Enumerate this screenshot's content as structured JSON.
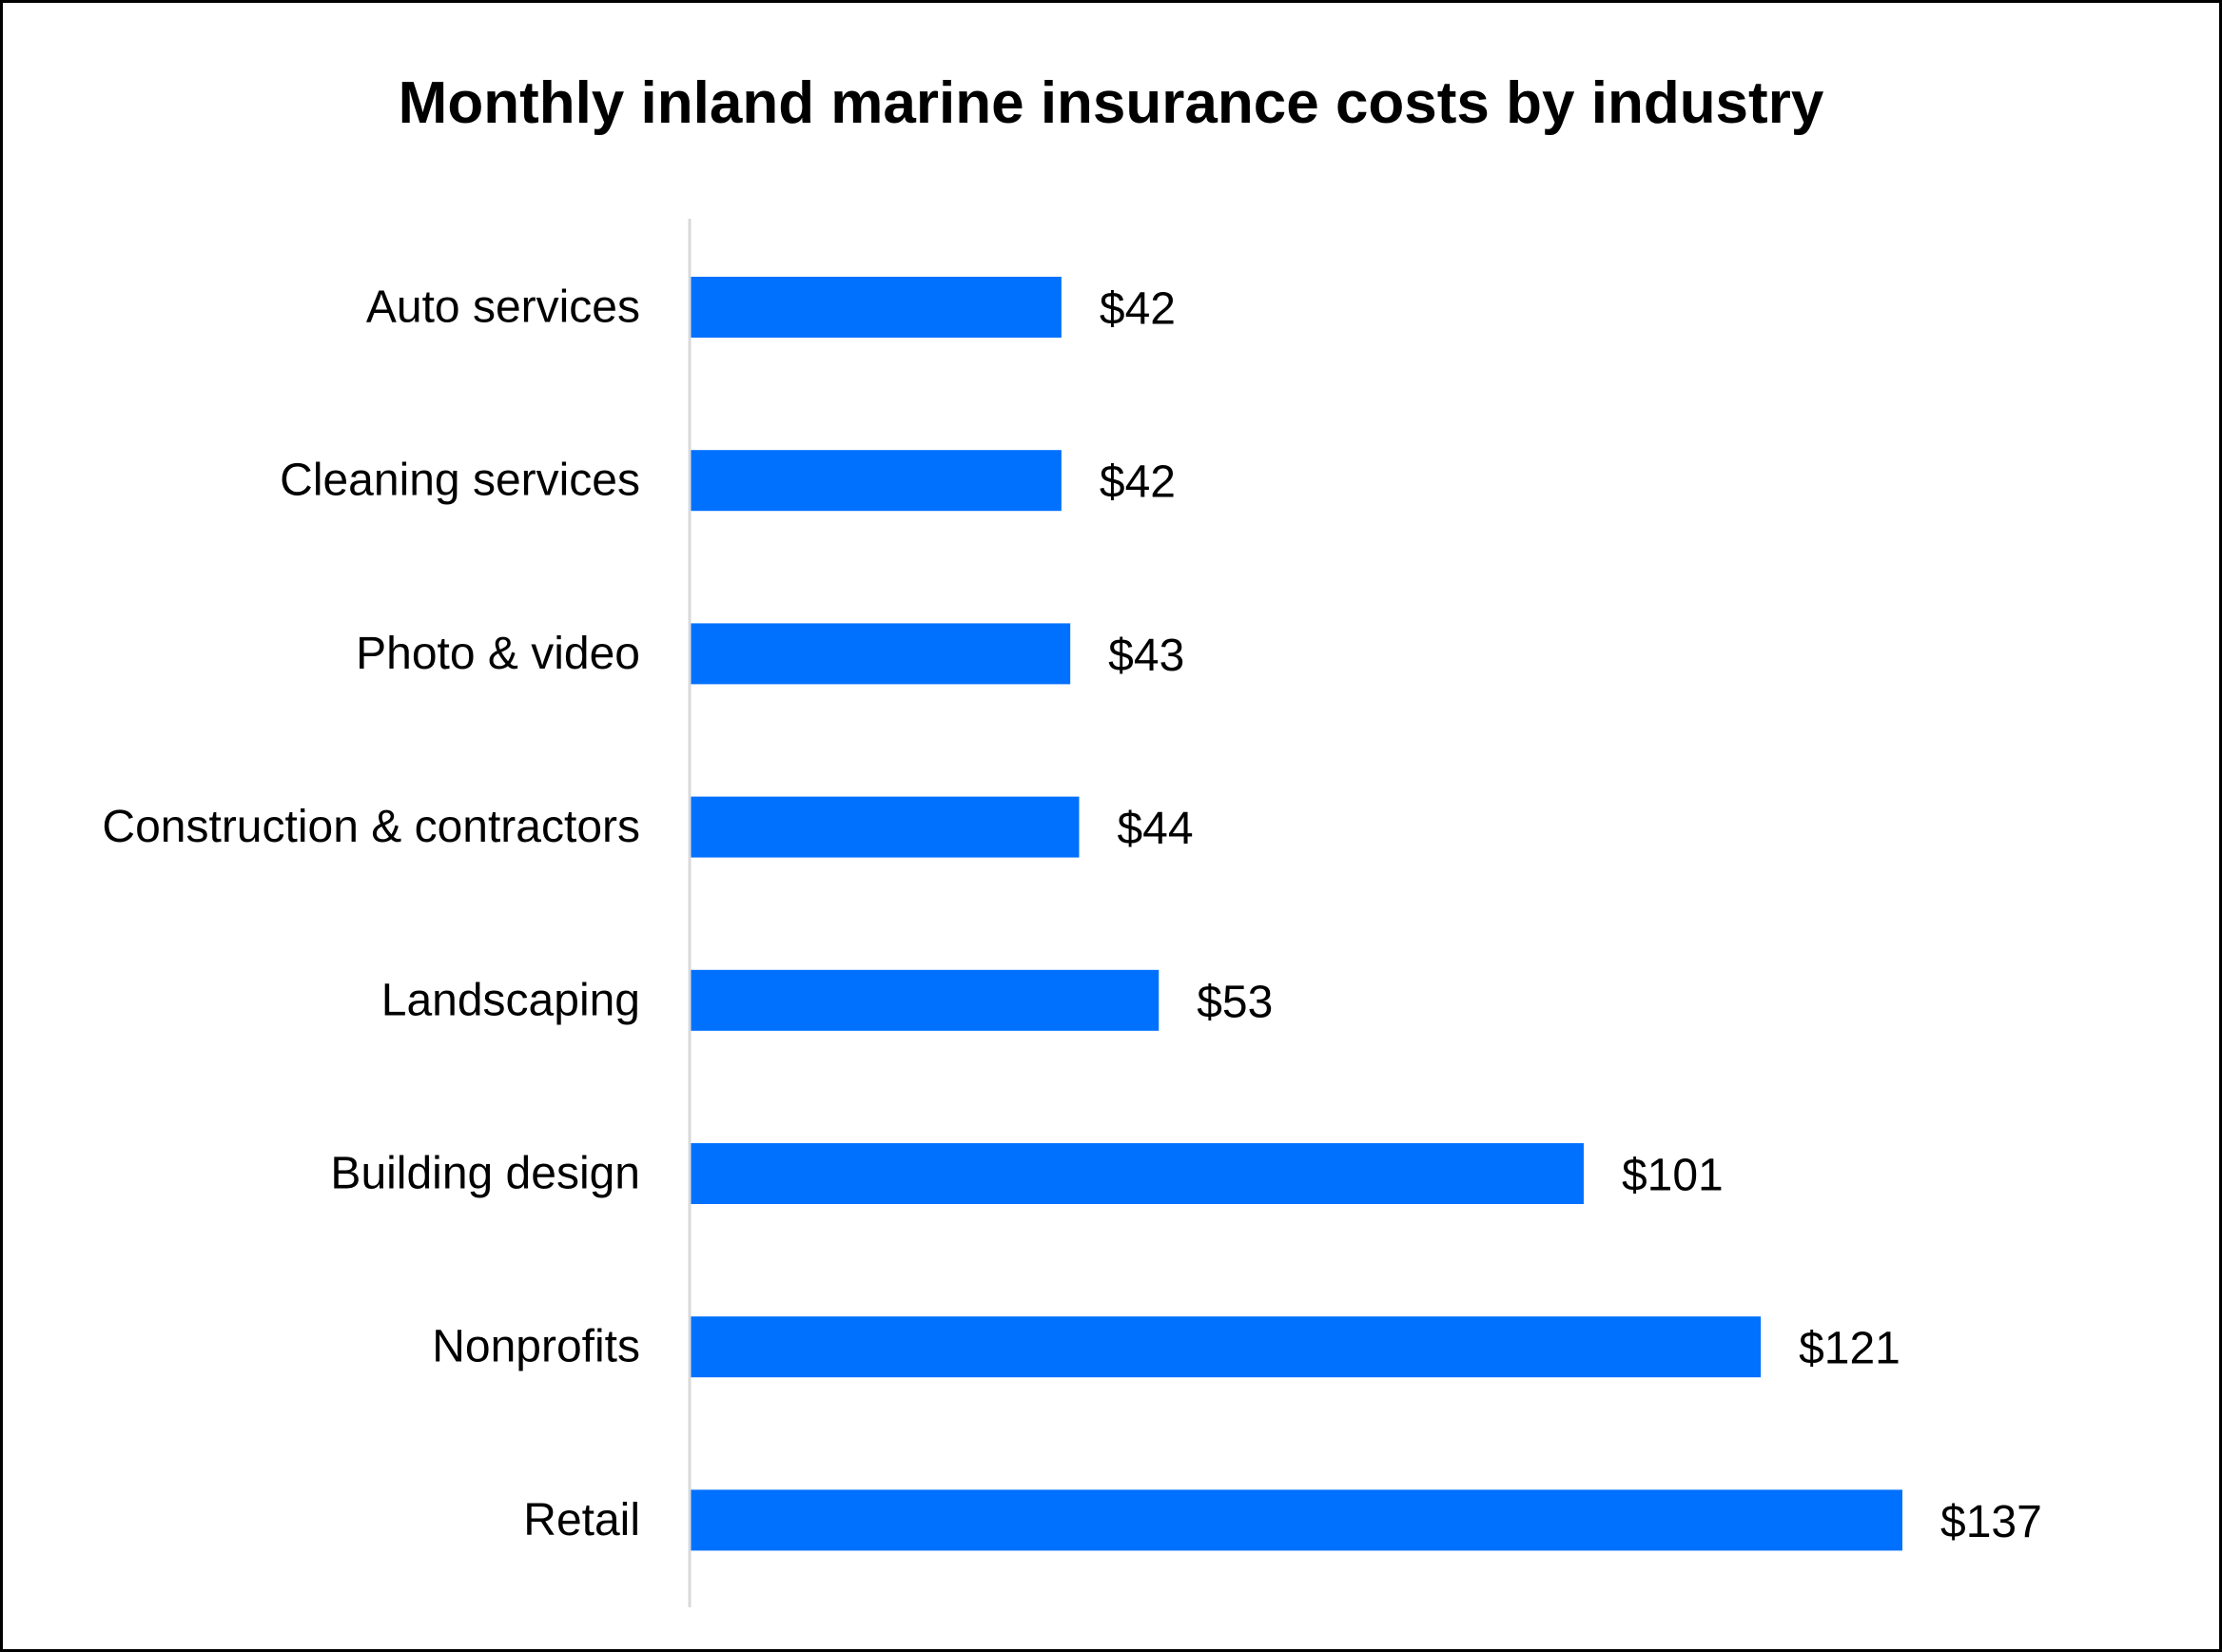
{
  "chart_data": {
    "type": "bar",
    "orientation": "horizontal",
    "title": "Monthly inland marine insurance costs by industry",
    "xlabel": "",
    "ylabel": "",
    "categories": [
      "Auto services",
      "Cleaning services",
      "Photo & video",
      "Construction & contractors",
      "Landscaping",
      "Building design",
      "Nonprofits",
      "Retail"
    ],
    "values": [
      42,
      42,
      43,
      44,
      53,
      101,
      121,
      137
    ],
    "data_labels": [
      "$42",
      "$42",
      "$43",
      "$44",
      "$53",
      "$101",
      "$121",
      "$137"
    ],
    "xlim": [
      0,
      150
    ],
    "grid": false,
    "legend": "none",
    "colors": {
      "bar": "#0070FF",
      "axis_line": "#D9D9D9",
      "border": "#000000",
      "text": "#000000"
    }
  }
}
